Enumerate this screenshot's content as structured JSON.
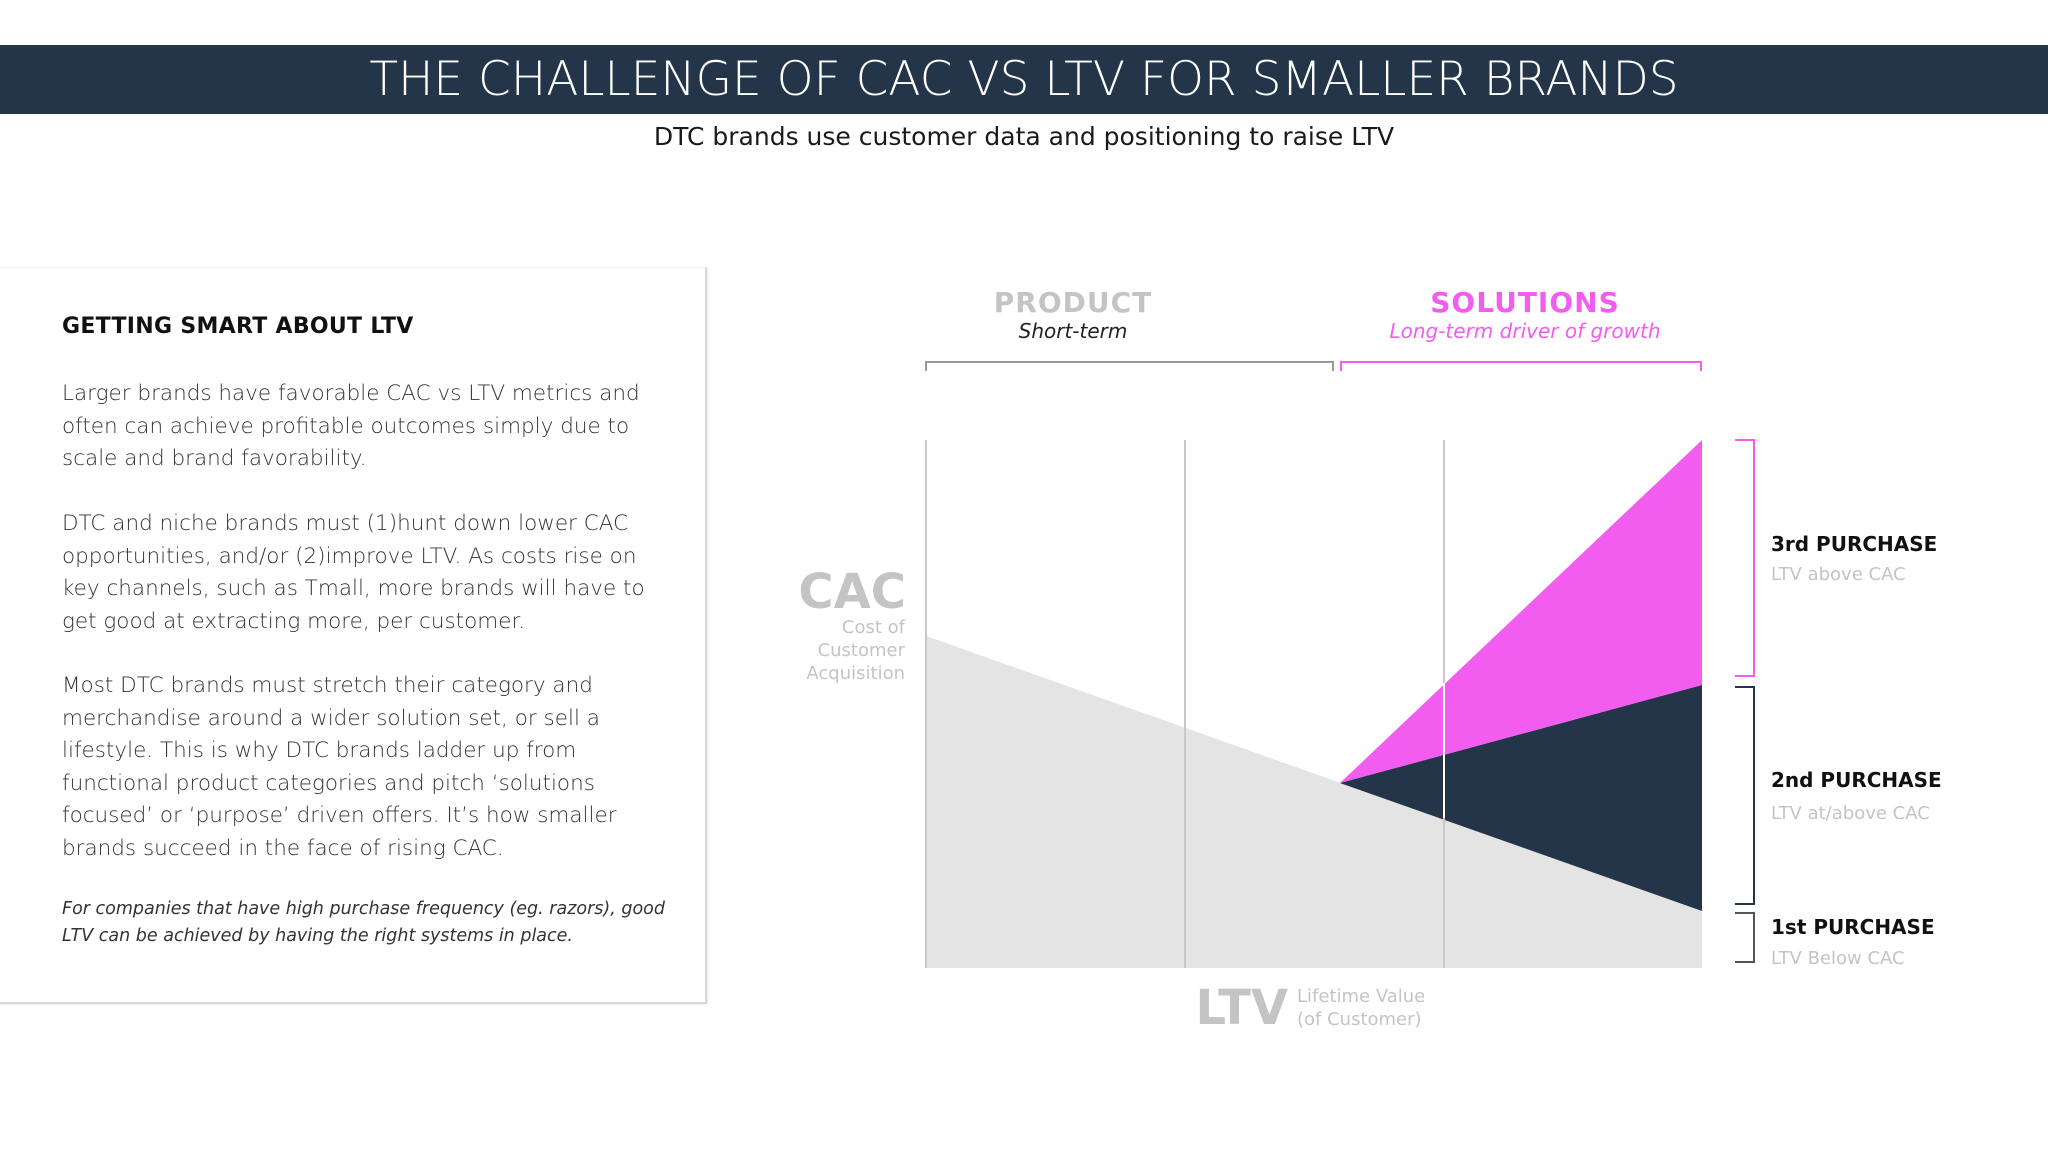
{
  "header": {
    "title": "THE CHALLENGE OF CAC VS LTV FOR SMALLER BRANDS",
    "subtitle": "DTC brands use customer data and positioning to raise LTV"
  },
  "card": {
    "heading": "GETTING SMART ABOUT LTV",
    "paragraphs": [
      "Larger brands have favorable CAC vs LTV metrics and often can achieve profitable outcomes simply due to scale and brand favorability.",
      "DTC and niche brands must (1)hunt down lower CAC opportunities, and/or (2)improve LTV. As costs rise on key channels, such as Tmall, more brands will have to get good at extracting more, per customer.",
      "Most DTC brands must stretch their category and merchandise around a wider solution set, or sell a lifestyle. This is why DTC brands ladder up from functional product categories and pitch ‘solutions focused’ or ‘purpose’ driven offers. It’s how smaller brands succeed in the face of rising CAC."
    ],
    "note": "For companies that have high purchase frequency (eg. razors), good LTV can be achieved by having the right systems in place."
  },
  "diagram": {
    "product_label": "PRODUCT",
    "product_sub": "Short-term",
    "solutions_label": "SOLUTIONS",
    "solutions_sub": "Long-term driver of growth",
    "cac_label": "CAC",
    "cac_desc": [
      "Cost of",
      "Customer",
      "Acquisition"
    ],
    "ltv_label": "LTV",
    "ltv_desc": [
      "Lifetime Value",
      "(of Customer)"
    ],
    "purchases": [
      {
        "title": "3rd PURCHASE",
        "desc": "LTV above CAC"
      },
      {
        "title": "2nd PURCHASE",
        "desc": "LTV at/above CAC"
      },
      {
        "title": "1st PURCHASE",
        "desc": "LTV Below CAC"
      }
    ],
    "colors": {
      "navy": "#253549",
      "magenta": "#f25cef",
      "gray_area": "#e4e4e4",
      "muted_text": "#c4c4c4"
    }
  }
}
